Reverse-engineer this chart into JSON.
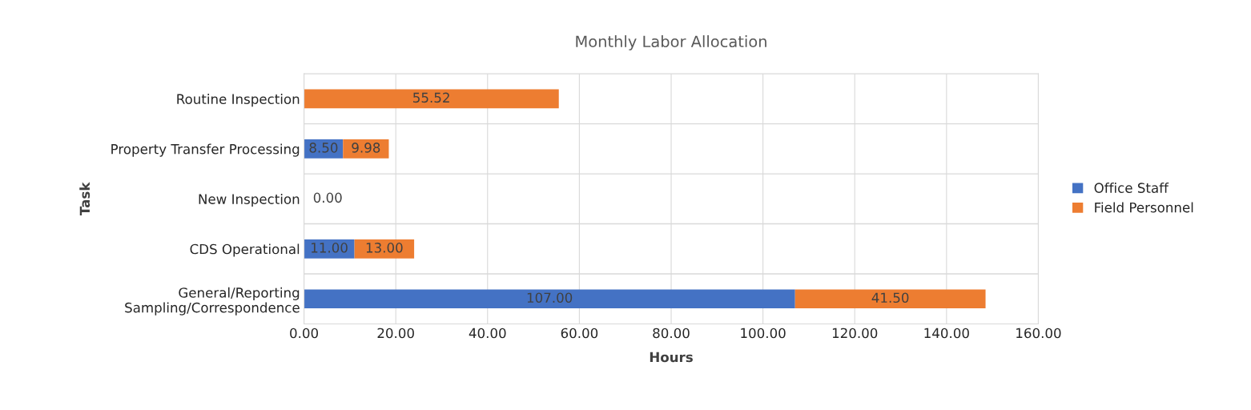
{
  "chart_data": {
    "type": "bar",
    "orientation": "horizontal",
    "stacked": true,
    "title": "Monthly Labor Allocation",
    "xlabel": "Hours",
    "ylabel": "Task",
    "categories": [
      "Routine Inspection",
      "Property Transfer Processing",
      "New Inspection",
      "CDS Operational",
      "General/Reporting\nSampling/Correspondence"
    ],
    "series": [
      {
        "name": "Office Staff",
        "color": "#4472c4",
        "values": [
          null,
          8.5,
          0,
          11,
          107
        ],
        "value_labels": [
          null,
          "8.50",
          "0.00",
          "11.00",
          "107.00"
        ]
      },
      {
        "name": "Field Personnel",
        "color": "#ed7d31",
        "values": [
          55.52,
          9.98,
          null,
          13,
          41.5
        ],
        "value_labels": [
          "55.52",
          "9.98",
          null,
          "13.00",
          "41.50"
        ]
      }
    ],
    "xlim": [
      0,
      160
    ],
    "xticks": [
      {
        "value": 0,
        "label": "0.00"
      },
      {
        "value": 20,
        "label": "20.00"
      },
      {
        "value": 40,
        "label": "40.00"
      },
      {
        "value": 60,
        "label": "60.00"
      },
      {
        "value": 80,
        "label": "80.00"
      },
      {
        "value": 100,
        "label": "100.00"
      },
      {
        "value": 120,
        "label": "120.00"
      },
      {
        "value": 140,
        "label": "140.00"
      },
      {
        "value": 160,
        "label": "160.00"
      }
    ],
    "grid": true,
    "legend": "right"
  }
}
